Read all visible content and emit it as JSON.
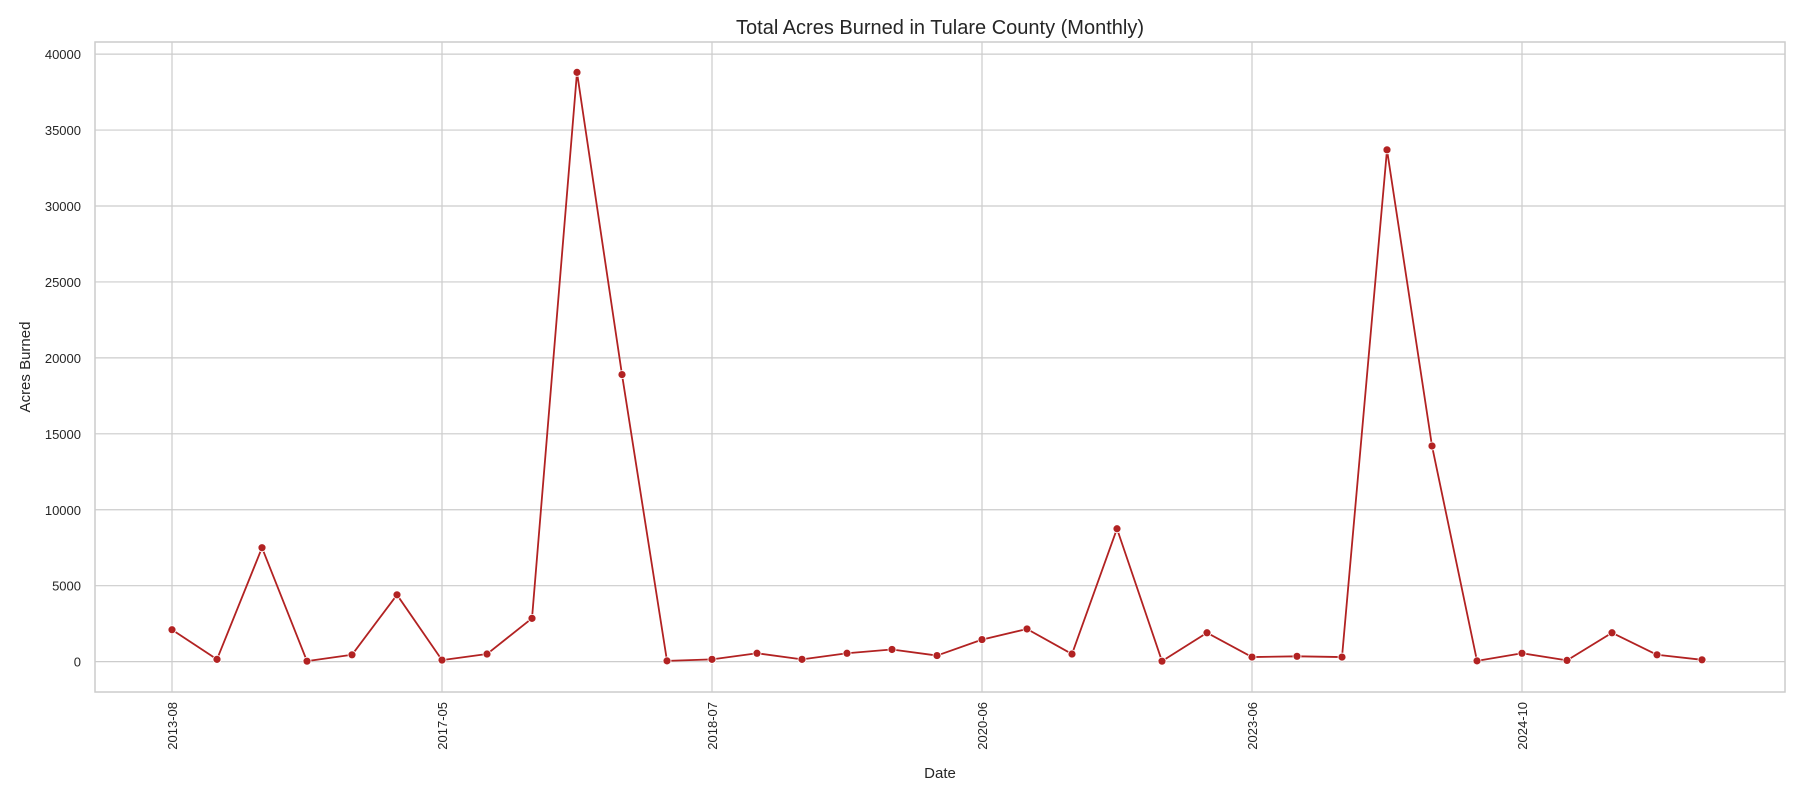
{
  "chart_data": {
    "type": "line",
    "title": "Total Acres Burned in Tulare County (Monthly)",
    "xlabel": "Date",
    "ylabel": "Acres Burned",
    "ylim": [
      -2000,
      40800
    ],
    "yticks": [
      0,
      5000,
      10000,
      15000,
      20000,
      25000,
      30000,
      35000,
      40000
    ],
    "xtick_labels": [
      "2013-08",
      "2017-05",
      "2018-07",
      "2020-06",
      "2023-06",
      "2024-10"
    ],
    "xtick_indices": [
      0,
      6,
      12,
      18,
      24,
      30
    ],
    "grid": true,
    "color": "#b22222",
    "series": [
      {
        "values": [
          2100,
          150,
          7500,
          30,
          450,
          4400,
          100,
          500,
          2850,
          38800,
          18900,
          50,
          150,
          550,
          150,
          550,
          800,
          400,
          1450,
          2150,
          500,
          8750,
          30,
          1900,
          300,
          350,
          300,
          33700,
          14200,
          50,
          550,
          80,
          1900,
          450,
          120
        ]
      }
    ]
  }
}
